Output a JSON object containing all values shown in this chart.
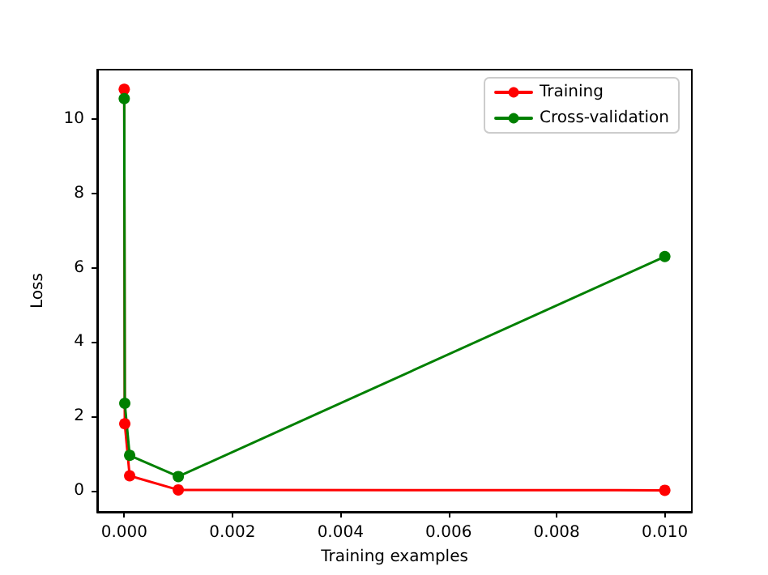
{
  "chart_data": {
    "type": "line",
    "xlabel": "Training examples",
    "ylabel": "Loss",
    "x": [
      0,
      1e-05,
      0.0001,
      0.001,
      0.01
    ],
    "series": [
      {
        "name": "Training",
        "color": "#ff0000",
        "values": [
          10.8,
          1.8,
          0.4,
          0.02,
          0.01
        ]
      },
      {
        "name": "Cross-validation",
        "color": "#008000",
        "values": [
          10.55,
          2.35,
          0.95,
          0.38,
          6.3
        ]
      }
    ],
    "xlim": [
      -0.0005,
      0.0105
    ],
    "xticks": [
      {
        "value": 0,
        "label": "0.000"
      },
      {
        "value": 0.002,
        "label": "0.002"
      },
      {
        "value": 0.004,
        "label": "0.004"
      },
      {
        "value": 0.006,
        "label": "0.006"
      },
      {
        "value": 0.008,
        "label": "0.008"
      },
      {
        "value": 0.01,
        "label": "0.010"
      }
    ],
    "ylim": [
      -0.57,
      11.33
    ],
    "yticks": [
      0,
      2,
      4,
      6,
      8,
      10
    ],
    "legend": "top right",
    "marker": "circle",
    "line_style": "solid",
    "grid": false
  }
}
